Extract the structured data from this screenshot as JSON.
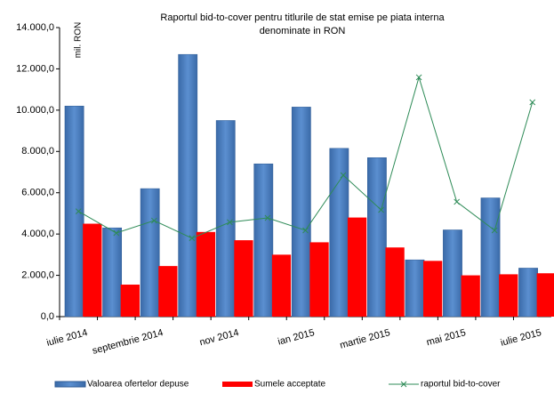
{
  "chart_data": {
    "type": "bar",
    "title": [
      "Raportul bid-to-cover pentru titlurile de stat emise pe piata interna",
      "denominate in RON"
    ],
    "y_unit": "mil. RON",
    "categories": [
      "iulie 2014",
      null,
      "septembrie 2014",
      null,
      "nov 2014",
      null,
      "ian 2015",
      null,
      "martie 2015",
      null,
      "mai  2015",
      null,
      "iulie 2015"
    ],
    "series": [
      {
        "name": "Valoarea ofertelor depuse",
        "color": "#4f81bd",
        "type": "bar",
        "values": [
          10200,
          4300,
          6200,
          12700,
          9500,
          7400,
          10150,
          8150,
          7700,
          2750,
          4200,
          5750,
          2350
        ]
      },
      {
        "name": "Sumele acceptate",
        "color": "#ff0000",
        "type": "bar",
        "values": [
          4500,
          1550,
          2450,
          4100,
          3700,
          3000,
          3600,
          4800,
          3350,
          2700,
          2000,
          2050,
          2100
        ]
      },
      {
        "name": "raportul bid-to-cover",
        "color": "#2e8b57",
        "type": "line",
        "values": [
          5100,
          4050,
          4650,
          3800,
          4570,
          4780,
          4180,
          6850,
          5170,
          11590,
          5560,
          4180,
          10380
        ]
      }
    ],
    "ylim": [
      0,
      14000
    ],
    "yticks": [
      {
        "value": 0,
        "label": "0,0"
      },
      {
        "value": 2000,
        "label": "2.000,0"
      },
      {
        "value": 4000,
        "label": "4.000,0"
      },
      {
        "value": 6000,
        "label": "6.000,0"
      },
      {
        "value": 8000,
        "label": "8.000,0"
      },
      {
        "value": 10000,
        "label": "10.000,0"
      },
      {
        "value": 12000,
        "label": "12.000,0"
      },
      {
        "value": 14000,
        "label": "14.000,0"
      }
    ],
    "grid": false
  }
}
